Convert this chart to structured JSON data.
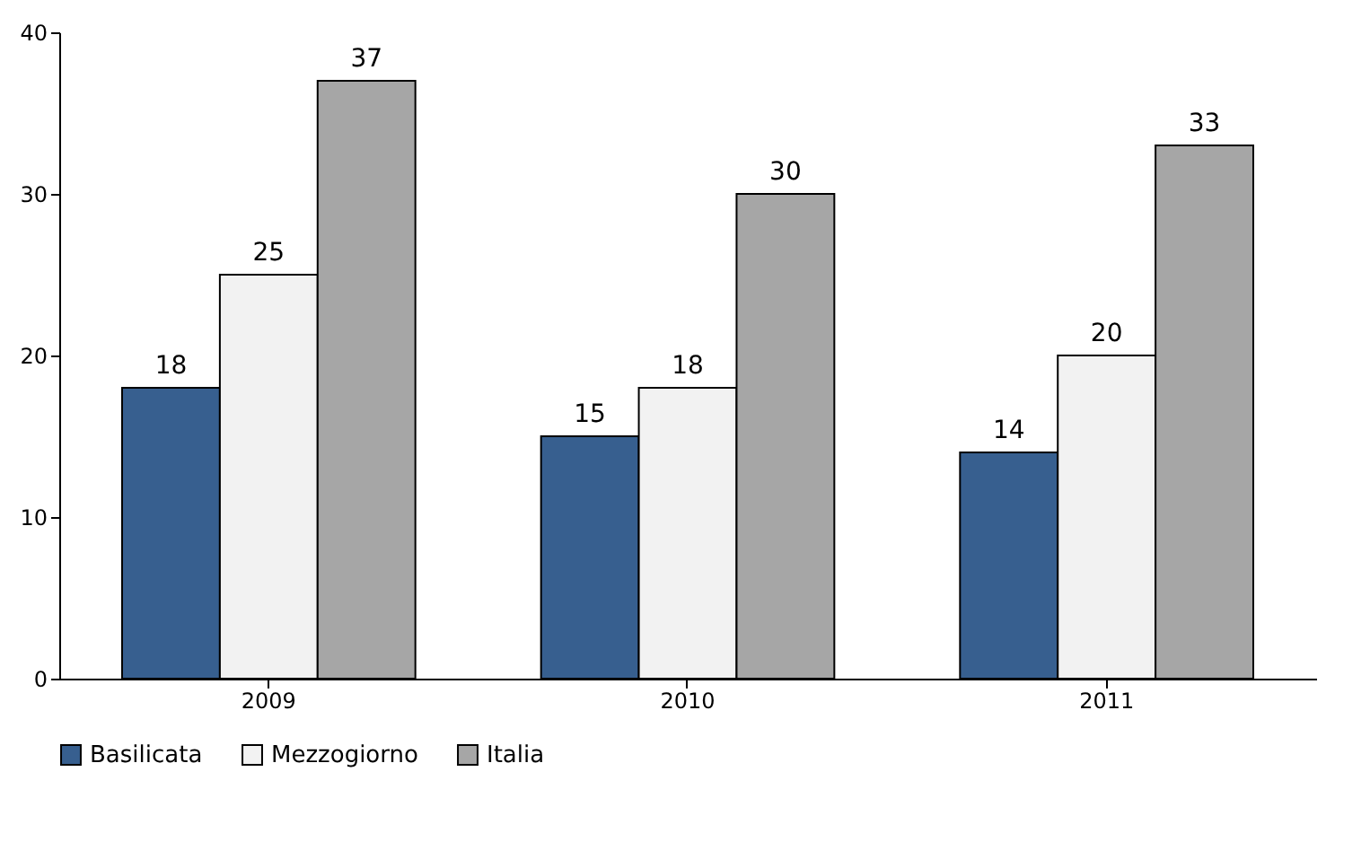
{
  "chart_data": {
    "type": "bar",
    "categories": [
      "2009",
      "2010",
      "2011"
    ],
    "series": [
      {
        "name": "Basilicata",
        "color": "#375f8f",
        "values": [
          18,
          15,
          14
        ]
      },
      {
        "name": "Mezzogiorno",
        "color": "#f2f2f2",
        "values": [
          25,
          18,
          20
        ]
      },
      {
        "name": "Italia",
        "color": "#a6a6a6",
        "values": [
          37,
          30,
          33
        ]
      }
    ],
    "ylim": [
      0,
      40
    ],
    "yticks": [
      0,
      10,
      20,
      30,
      40
    ],
    "grid": false,
    "legend": "bottom",
    "data_labels": true
  }
}
